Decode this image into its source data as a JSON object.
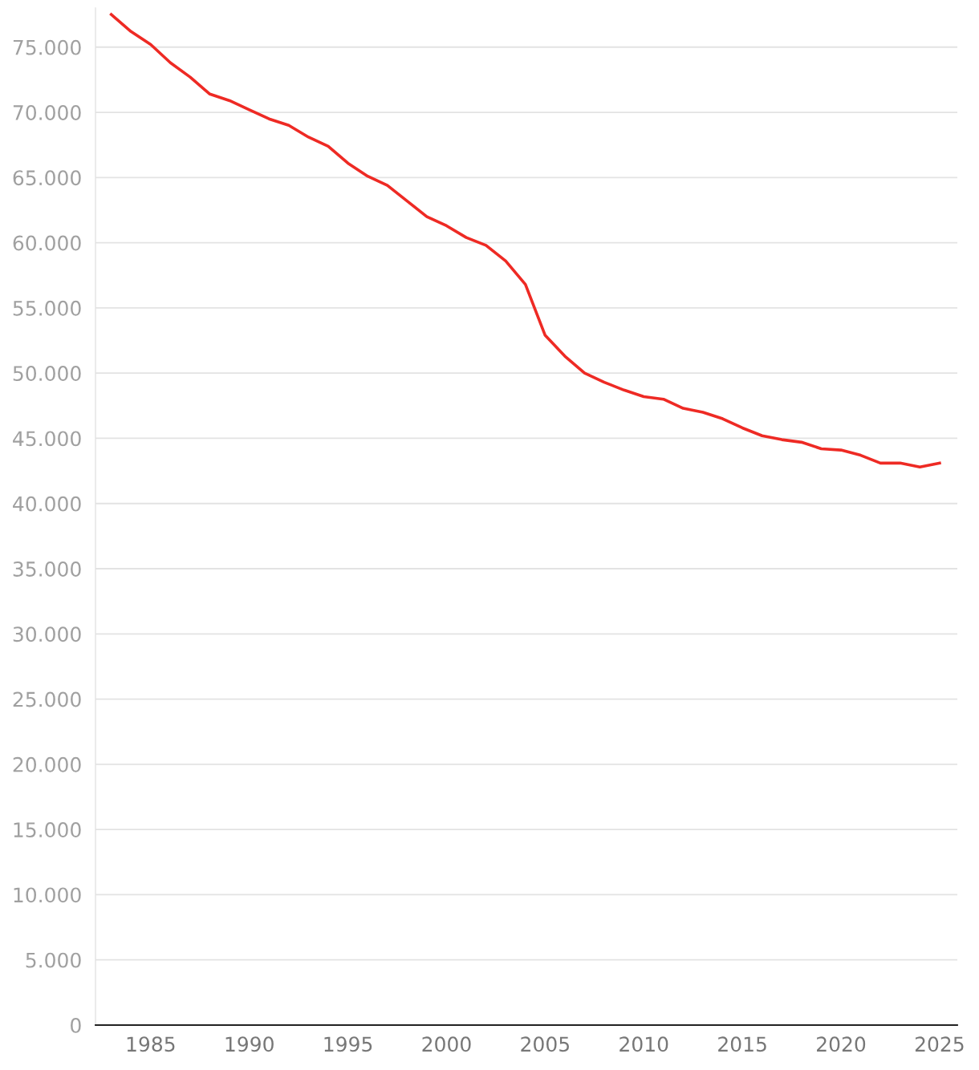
{
  "chart_data": {
    "type": "line",
    "x": [
      1983,
      1984,
      1985,
      1986,
      1987,
      1988,
      1989,
      1990,
      1991,
      1992,
      1993,
      1994,
      1995,
      1996,
      1997,
      1998,
      1999,
      2000,
      2001,
      2002,
      2003,
      2004,
      2005,
      2006,
      2007,
      2008,
      2009,
      2010,
      2011,
      2012,
      2013,
      2014,
      2015,
      2016,
      2017,
      2018,
      2019,
      2020,
      2021,
      2022,
      2023,
      2024,
      2025
    ],
    "series": [
      {
        "color": "#ee2a24",
        "values": [
          77500,
          76200,
          75200,
          73800,
          72700,
          71400,
          70900,
          70200,
          69500,
          69000,
          68100,
          67400,
          66100,
          65100,
          64400,
          63200,
          62000,
          61300,
          60400,
          59800,
          58600,
          56800,
          52900,
          51300,
          50000,
          49300,
          48700,
          48200,
          48000,
          47300,
          47000,
          46500,
          45800,
          45200,
          44900,
          44700,
          44200,
          44100,
          43700,
          43100,
          43100,
          42800,
          43100
        ]
      }
    ],
    "xlim": [
      1982.2,
      2025.9
    ],
    "ylim": [
      0,
      78000
    ],
    "xticks": [
      1985,
      1990,
      1995,
      2000,
      2005,
      2010,
      2015,
      2020,
      2025
    ],
    "yticks": [
      0,
      {
        "value": 5000,
        "label": "5.000"
      },
      {
        "value": 10000,
        "label": "10.000"
      },
      {
        "value": 15000,
        "label": "15.000"
      },
      {
        "value": 20000,
        "label": "20.000"
      },
      {
        "value": 25000,
        "label": "25.000"
      },
      {
        "value": 30000,
        "label": "30.000"
      },
      {
        "value": 35000,
        "label": "35.000"
      },
      {
        "value": 40000,
        "label": "40.000"
      },
      {
        "value": 45000,
        "label": "45.000"
      },
      {
        "value": 50000,
        "label": "50.000"
      },
      {
        "value": 55000,
        "label": "55.000"
      },
      {
        "value": 60000,
        "label": "60.000"
      },
      {
        "value": 65000,
        "label": "65.000"
      },
      {
        "value": 70000,
        "label": "70.000"
      },
      {
        "value": 75000,
        "label": "75.000"
      }
    ],
    "grid": "y",
    "marker": "none",
    "line_style": "solid"
  }
}
